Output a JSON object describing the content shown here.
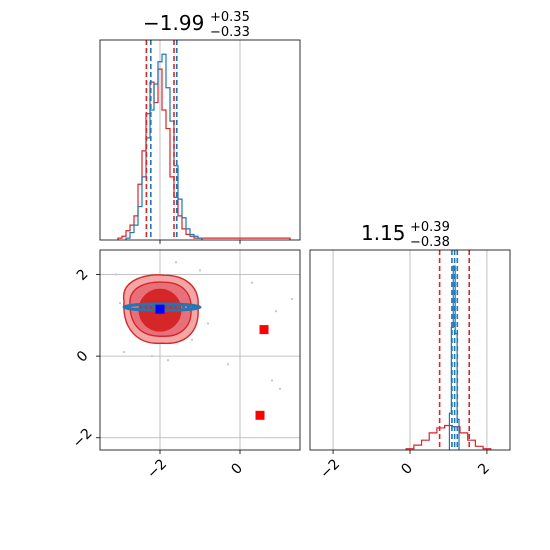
{
  "colors": {
    "red": "#d62728",
    "blue": "#1f77b4",
    "marker_blue": "#0000ff",
    "marker_red": "#ff0000",
    "grid": "#b0b0b0",
    "light_red": "#f4a5a5",
    "mid_red": "#e8707a"
  },
  "chart_data": [
    {
      "type": "histogram",
      "panel": "top-left",
      "title": {
        "median": "−1.99",
        "plus": "+0.35",
        "minus": "−0.33"
      },
      "xlim": [
        -3.5,
        1.5
      ],
      "quantile_lines": {
        "red": [
          -2.34,
          -1.65
        ],
        "blue": [
          -2.23,
          -1.58
        ],
        "red_center": -2.0,
        "blue_center": -1.91
      },
      "series": [
        {
          "name": "",
          "color": "red",
          "x": [
            -3.0,
            -2.9,
            -2.8,
            -2.7,
            -2.6,
            -2.5,
            -2.4,
            -2.3,
            -2.2,
            -2.1,
            -2.0,
            -1.9,
            -1.8,
            -1.7,
            -1.6,
            -1.5,
            -1.4,
            -1.3,
            -1.2,
            -1.1,
            -1.0,
            0.6,
            0.8,
            1.0,
            1.2
          ],
          "values": [
            1,
            2,
            5,
            8,
            13,
            30,
            48,
            68,
            85,
            74,
            92,
            70,
            60,
            34,
            23,
            13,
            6,
            3,
            2,
            1,
            1,
            1,
            1,
            1,
            1
          ]
        },
        {
          "name": "",
          "color": "blue",
          "x": [
            -2.8,
            -2.7,
            -2.6,
            -2.5,
            -2.4,
            -2.3,
            -2.2,
            -2.1,
            -2.0,
            -1.9,
            -1.8,
            -1.7,
            -1.6,
            -1.5,
            -1.4,
            -1.3,
            -1.2,
            -1.1,
            -1.0
          ],
          "values": [
            1,
            4,
            8,
            18,
            34,
            55,
            70,
            84,
            96,
            100,
            82,
            64,
            40,
            22,
            12,
            6,
            3,
            2,
            1
          ]
        }
      ]
    },
    {
      "type": "scatter",
      "panel": "bottom-left",
      "xlim": [
        -3.5,
        1.5
      ],
      "ylim": [
        -2.3,
        2.6
      ],
      "xticks": [
        "−2",
        "0"
      ],
      "yticks": [
        "−2",
        "0",
        "2"
      ],
      "points": [
        {
          "x": -2.0,
          "y": 1.15,
          "color": "marker_blue",
          "marker": "square"
        },
        {
          "x": 0.6,
          "y": 0.65,
          "color": "marker_red",
          "marker": "square"
        },
        {
          "x": 0.5,
          "y": -1.45,
          "color": "marker_red",
          "marker": "square"
        }
      ],
      "contours": "red filled contours around (-2.0, 1.15); blue narrow band at y≈1.2"
    },
    {
      "type": "histogram",
      "panel": "bottom-right",
      "title": {
        "median": "1.15",
        "plus": "+0.39",
        "minus": "−0.38"
      },
      "xlim": [
        -2.6,
        2.6
      ],
      "xticks": [
        "−2",
        "0",
        "2"
      ],
      "quantile_lines": {
        "red": [
          0.77,
          1.54
        ],
        "blue": [
          1.09,
          1.23
        ],
        "red_center": 1.15,
        "blue_center": 1.16
      },
      "series": [
        {
          "name": "",
          "color": "red",
          "x": [
            0.0,
            0.2,
            0.4,
            0.6,
            0.8,
            1.0,
            1.2,
            1.4,
            1.6,
            1.8,
            2.0
          ],
          "values": [
            1,
            4,
            8,
            14,
            18,
            20,
            19,
            14,
            8,
            3,
            1
          ]
        },
        {
          "name": "",
          "color": "blue",
          "x": [
            1.05,
            1.1,
            1.15,
            1.2,
            1.25
          ],
          "values": [
            30,
            100,
            150,
            95,
            25
          ]
        }
      ]
    }
  ]
}
